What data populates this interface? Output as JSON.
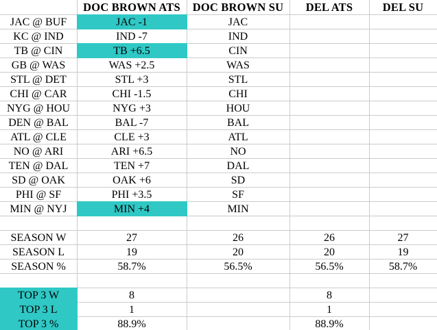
{
  "colors": {
    "highlight": "#2FC8C5",
    "gridline": "#C9CCCB",
    "text": "#000000",
    "background": "#FFFFFF"
  },
  "table": {
    "rows": [
      {
        "kind": "header",
        "cells": [
          {
            "t": ""
          },
          {
            "t": "DOC BROWN ATS"
          },
          {
            "t": "DOC BROWN SU"
          },
          {
            "t": "DEL ATS"
          },
          {
            "t": "DEL SU"
          }
        ]
      },
      {
        "kind": "game",
        "cells": [
          {
            "t": "JAC @ BUF"
          },
          {
            "t": "JAC -1",
            "hl": true
          },
          {
            "t": "JAC"
          },
          {
            "t": ""
          },
          {
            "t": ""
          }
        ]
      },
      {
        "kind": "game",
        "cells": [
          {
            "t": "KC @ IND"
          },
          {
            "t": "IND -7"
          },
          {
            "t": "IND"
          },
          {
            "t": ""
          },
          {
            "t": ""
          }
        ]
      },
      {
        "kind": "game",
        "cells": [
          {
            "t": "TB @ CIN"
          },
          {
            "t": "TB +6.5",
            "hl": true
          },
          {
            "t": "CIN"
          },
          {
            "t": ""
          },
          {
            "t": ""
          }
        ]
      },
      {
        "kind": "game",
        "cells": [
          {
            "t": "GB @ WAS"
          },
          {
            "t": "WAS +2.5"
          },
          {
            "t": "WAS"
          },
          {
            "t": ""
          },
          {
            "t": ""
          }
        ]
      },
      {
        "kind": "game",
        "cells": [
          {
            "t": "STL @ DET"
          },
          {
            "t": "STL +3"
          },
          {
            "t": "STL"
          },
          {
            "t": ""
          },
          {
            "t": ""
          }
        ]
      },
      {
        "kind": "game",
        "cells": [
          {
            "t": "CHI @ CAR"
          },
          {
            "t": "CHI -1.5"
          },
          {
            "t": "CHI"
          },
          {
            "t": ""
          },
          {
            "t": ""
          }
        ]
      },
      {
        "kind": "game",
        "cells": [
          {
            "t": "NYG @ HOU"
          },
          {
            "t": "NYG +3"
          },
          {
            "t": "HOU"
          },
          {
            "t": ""
          },
          {
            "t": ""
          }
        ]
      },
      {
        "kind": "game",
        "cells": [
          {
            "t": "DEN @ BAL"
          },
          {
            "t": "BAL -7"
          },
          {
            "t": "BAL"
          },
          {
            "t": ""
          },
          {
            "t": ""
          }
        ]
      },
      {
        "kind": "game",
        "cells": [
          {
            "t": "ATL @ CLE"
          },
          {
            "t": "CLE +3"
          },
          {
            "t": "ATL"
          },
          {
            "t": ""
          },
          {
            "t": ""
          }
        ]
      },
      {
        "kind": "game",
        "cells": [
          {
            "t": "NO @ ARI"
          },
          {
            "t": "ARI +6.5"
          },
          {
            "t": "NO"
          },
          {
            "t": ""
          },
          {
            "t": ""
          }
        ]
      },
      {
        "kind": "game",
        "cells": [
          {
            "t": "TEN @ DAL"
          },
          {
            "t": "TEN +7"
          },
          {
            "t": "DAL"
          },
          {
            "t": ""
          },
          {
            "t": ""
          }
        ]
      },
      {
        "kind": "game",
        "cells": [
          {
            "t": "SD @ OAK"
          },
          {
            "t": "OAK +6"
          },
          {
            "t": "SD"
          },
          {
            "t": ""
          },
          {
            "t": ""
          }
        ]
      },
      {
        "kind": "game",
        "cells": [
          {
            "t": "PHI @ SF"
          },
          {
            "t": "PHI +3.5"
          },
          {
            "t": "SF"
          },
          {
            "t": ""
          },
          {
            "t": ""
          }
        ]
      },
      {
        "kind": "game",
        "cells": [
          {
            "t": "MIN @ NYJ"
          },
          {
            "t": "MIN +4",
            "hl": true
          },
          {
            "t": "MIN"
          },
          {
            "t": ""
          },
          {
            "t": ""
          }
        ]
      },
      {
        "kind": "spacer",
        "cells": [
          {
            "t": ""
          },
          {
            "t": ""
          },
          {
            "t": ""
          },
          {
            "t": ""
          },
          {
            "t": ""
          }
        ]
      },
      {
        "kind": "summary",
        "cells": [
          {
            "t": "SEASON W"
          },
          {
            "t": "27"
          },
          {
            "t": "26"
          },
          {
            "t": "26"
          },
          {
            "t": "27"
          }
        ]
      },
      {
        "kind": "summary",
        "cells": [
          {
            "t": "SEASON L"
          },
          {
            "t": "19"
          },
          {
            "t": "20"
          },
          {
            "t": "20"
          },
          {
            "t": "19"
          }
        ]
      },
      {
        "kind": "summary",
        "cells": [
          {
            "t": "SEASON %"
          },
          {
            "t": "58.7%"
          },
          {
            "t": "56.5%"
          },
          {
            "t": "56.5%"
          },
          {
            "t": "58.7%"
          }
        ]
      },
      {
        "kind": "spacer",
        "cells": [
          {
            "t": ""
          },
          {
            "t": ""
          },
          {
            "t": ""
          },
          {
            "t": ""
          },
          {
            "t": ""
          }
        ]
      },
      {
        "kind": "summary",
        "cells": [
          {
            "t": "TOP 3 W",
            "hl": true
          },
          {
            "t": "8"
          },
          {
            "t": ""
          },
          {
            "t": "8"
          },
          {
            "t": ""
          }
        ]
      },
      {
        "kind": "summary",
        "cells": [
          {
            "t": "TOP 3 L",
            "hl": true
          },
          {
            "t": "1"
          },
          {
            "t": ""
          },
          {
            "t": "1"
          },
          {
            "t": ""
          }
        ]
      },
      {
        "kind": "summary",
        "cells": [
          {
            "t": "TOP 3 %",
            "hl": true
          },
          {
            "t": "88.9%"
          },
          {
            "t": ""
          },
          {
            "t": "88.9%"
          },
          {
            "t": ""
          }
        ]
      }
    ]
  }
}
